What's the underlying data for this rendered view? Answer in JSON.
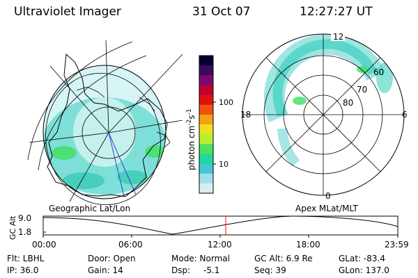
{
  "header": {
    "instrument": "Ultraviolet Imager",
    "date": "31 Oct 07",
    "time": "12:27:27 UT"
  },
  "left_panel": {
    "caption": "Geographic Lat/Lon"
  },
  "right_panel": {
    "caption": "Apex MLat/MLT",
    "mlt_labels": [
      "12",
      "18",
      "6",
      "0"
    ],
    "mlat_labels": [
      "60",
      "70",
      "80"
    ]
  },
  "colorbar": {
    "label": "photon cm",
    "label_exp1": "-2",
    "label_s": "s",
    "label_exp2": "-1",
    "ticks": [
      "100",
      "10"
    ],
    "colors": [
      "#000033",
      "#3a0a5e",
      "#7a0a70",
      "#c00030",
      "#e01010",
      "#f05010",
      "#f8a010",
      "#f0e020",
      "#b8f030",
      "#50e060",
      "#20d8a0",
      "#40c8d8",
      "#9ee0e8",
      "#d8eef2"
    ]
  },
  "altitude_strip": {
    "axis_label": "GC Alt",
    "y_ticks": [
      "9.0",
      "1.8"
    ],
    "x_ticks": [
      "00:00",
      "06:00",
      "12:00",
      "18:00",
      "23:59"
    ],
    "marker_time": "12:27",
    "marker_color": "#ff0000"
  },
  "info": {
    "flt": "Flt: LBHL",
    "ip": "IP: 36.0",
    "door": "Door: Open",
    "gain": "Gain: 14",
    "mode": "Mode: Normal",
    "dsp_label": "Dsp:",
    "dsp_value": "-5.1",
    "gc_alt": "GC Alt: 6.9 Re",
    "seq": "Seq: 39",
    "glat": "GLat: -83.4",
    "glon": "GLon: 137.0"
  },
  "colors": {
    "aurora_teal": "#40d0c8",
    "aurora_green": "#40e060",
    "land_outline": "#000000"
  }
}
